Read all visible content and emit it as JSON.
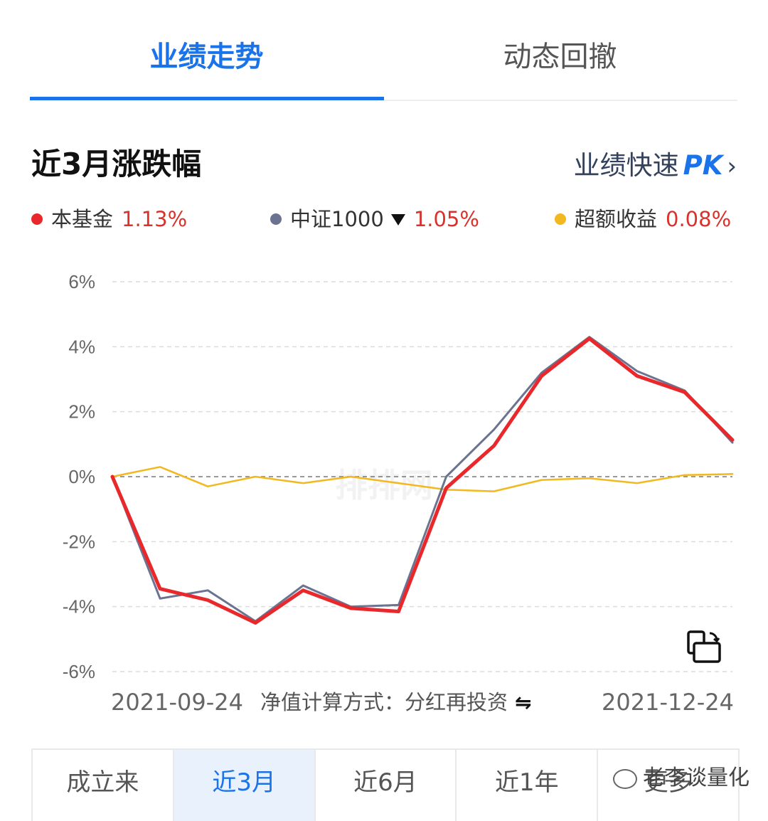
{
  "tabs": {
    "active": "业绩走势",
    "inactive": "动态回撤"
  },
  "section": {
    "title": "近3月涨跌幅",
    "pk_label": "业绩快速",
    "pk_suffix": "PK",
    "chevron": "›"
  },
  "legend": [
    {
      "name": "本基金",
      "value": "1.13%",
      "color": "#e8282b"
    },
    {
      "name": "中证1000",
      "value": "1.05%",
      "color": "#6b7390",
      "has_dropdown": true
    },
    {
      "name": "超额收益",
      "value": "0.08%",
      "color": "#f2b820"
    }
  ],
  "footer": {
    "start_date": "2021-09-24",
    "end_date": "2021-12-24",
    "calc_method": "净值计算方式：分红再投资",
    "swap_icon": "⇋"
  },
  "periods": [
    {
      "label": "成立来",
      "active": false
    },
    {
      "label": "近3月",
      "active": true
    },
    {
      "label": "近6月",
      "active": false
    },
    {
      "label": "近1年",
      "active": false
    },
    {
      "label": "更多",
      "active": false
    }
  ],
  "watermarks": {
    "center": "排排网",
    "bottom": "老李谈量化"
  },
  "chart_data": {
    "type": "line",
    "title": "",
    "xlabel": "",
    "ylabel": "",
    "ylim": [
      -6,
      6
    ],
    "yticks": [
      6,
      4,
      2,
      0,
      -2,
      -4,
      -6
    ],
    "ytick_labels": [
      "6%",
      "4%",
      "2%",
      "0%",
      "-2%",
      "-4%",
      "-6%"
    ],
    "grid": true,
    "x_start": "2021-09-24",
    "x_end": "2021-12-24",
    "series": [
      {
        "name": "中证1000",
        "color": "#6b7390",
        "values": [
          0,
          -3.75,
          -3.5,
          -4.45,
          -3.35,
          -4.0,
          -3.95,
          0.0,
          1.45,
          3.2,
          4.3,
          3.25,
          2.65,
          1.05
        ]
      },
      {
        "name": "本基金",
        "color": "#e8282b",
        "values": [
          0,
          -3.45,
          -3.8,
          -4.5,
          -3.5,
          -4.05,
          -4.15,
          -0.35,
          0.95,
          3.1,
          4.25,
          3.1,
          2.6,
          1.13
        ]
      },
      {
        "name": "超额收益",
        "color": "#f2b820",
        "values": [
          0,
          0.3,
          -0.3,
          0.0,
          -0.2,
          0.0,
          -0.2,
          -0.4,
          -0.45,
          -0.1,
          -0.05,
          -0.2,
          0.05,
          0.08
        ]
      }
    ]
  }
}
